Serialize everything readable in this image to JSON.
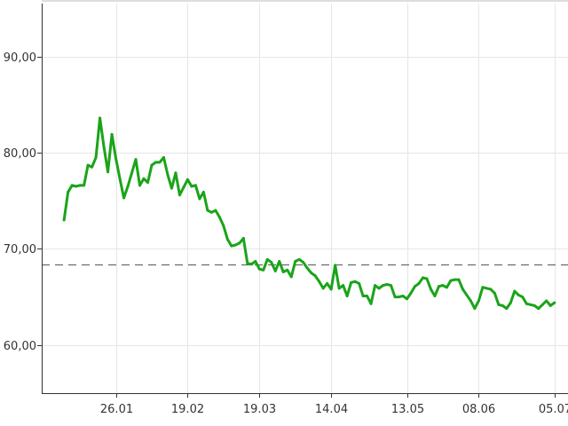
{
  "chart_data": {
    "type": "line",
    "y_ticks": [
      {
        "value": 60,
        "label": "60,00"
      },
      {
        "value": 70,
        "label": "70,00"
      },
      {
        "value": 80,
        "label": "80,00"
      },
      {
        "value": 90,
        "label": "90,00"
      }
    ],
    "x_ticks": [
      {
        "index": 13,
        "label": "26.01"
      },
      {
        "index": 31,
        "label": "19.02"
      },
      {
        "index": 49,
        "label": "19.03"
      },
      {
        "index": 67,
        "label": "14.04"
      },
      {
        "index": 86,
        "label": "13.05"
      },
      {
        "index": 104,
        "label": "08.06"
      },
      {
        "index": 123,
        "label": "05.07"
      }
    ],
    "ylim": [
      55.0,
      95.5
    ],
    "x_range": [
      -5.6,
      126.4
    ],
    "grid": true,
    "reference_line": 68.4,
    "colors": {
      "line": "#1aa41a",
      "grid": "#e6e6e6",
      "reference": "#555555",
      "axis": "#333333"
    },
    "series": [
      {
        "values": [
          73.0,
          75.9,
          76.6,
          76.5,
          76.6,
          76.6,
          78.7,
          78.5,
          79.5,
          83.6,
          80.6,
          78.0,
          81.9,
          79.4,
          77.3,
          75.3,
          76.5,
          77.9,
          79.3,
          76.6,
          77.3,
          76.9,
          78.7,
          79.0,
          79.0,
          79.5,
          77.7,
          76.3,
          77.9,
          75.6,
          76.4,
          77.2,
          76.5,
          76.6,
          75.2,
          75.9,
          74.0,
          73.8,
          74.0,
          73.3,
          72.4,
          71.0,
          70.3,
          70.4,
          70.6,
          71.1,
          68.5,
          68.4,
          68.7,
          67.9,
          67.8,
          68.9,
          68.6,
          67.7,
          68.7,
          67.6,
          67.8,
          67.1,
          68.7,
          68.9,
          68.6,
          68.0,
          67.5,
          67.2,
          66.6,
          65.9,
          66.4,
          65.8,
          68.3,
          65.9,
          66.2,
          65.1,
          66.5,
          66.6,
          66.4,
          65.1,
          65.1,
          64.3,
          66.2,
          65.9,
          66.2,
          66.3,
          66.2,
          65.0,
          65.0,
          65.1,
          64.8,
          65.4,
          66.1,
          66.4,
          67.0,
          66.9,
          65.8,
          65.1,
          66.1,
          66.2,
          66.0,
          66.7,
          66.8,
          66.8,
          65.8,
          65.2,
          64.6,
          63.8,
          64.6,
          66.0,
          65.9,
          65.8,
          65.4,
          64.2,
          64.1,
          63.8,
          64.4,
          65.6,
          65.2,
          65.0,
          64.3,
          64.2,
          64.1,
          63.8,
          64.2,
          64.6,
          64.1,
          64.4
        ]
      }
    ]
  }
}
